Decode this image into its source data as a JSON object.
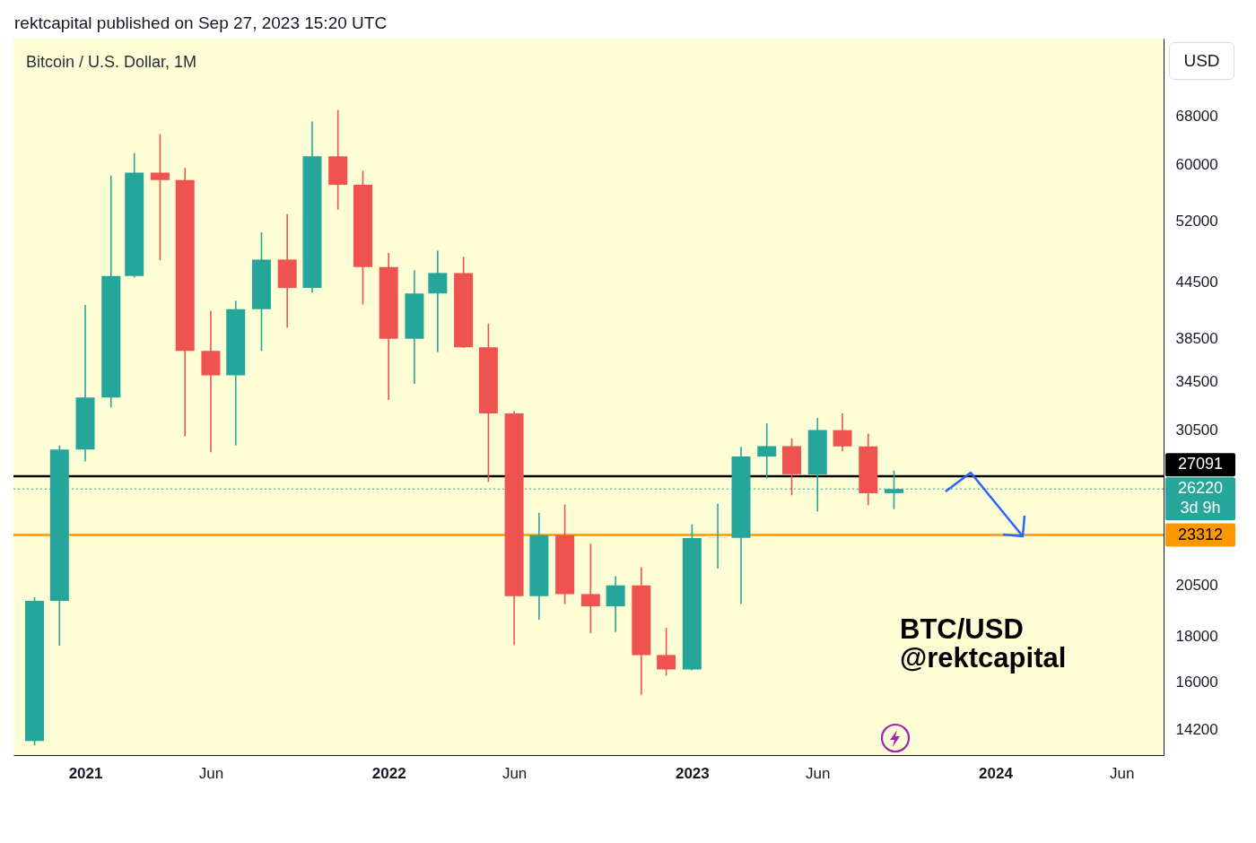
{
  "chart_data": {
    "type": "candlestick",
    "title": "rektcapital published on Sep 27, 2023 15:20 UTC",
    "subtitle": "Bitcoin / U.S. Dollar, 1M",
    "ylabel": "USD",
    "x": [
      "2020-11",
      "2020-12",
      "2021-01",
      "2021-02",
      "2021-03",
      "2021-04",
      "2021-05",
      "2021-06",
      "2021-07",
      "2021-08",
      "2021-09",
      "2021-10",
      "2021-11",
      "2021-12",
      "2022-01",
      "2022-02",
      "2022-03",
      "2022-04",
      "2022-05",
      "2022-06",
      "2022-07",
      "2022-08",
      "2022-09",
      "2022-10",
      "2022-11",
      "2022-12",
      "2023-01",
      "2023-02",
      "2023-03",
      "2023-04",
      "2023-05",
      "2023-06",
      "2023-07",
      "2023-08",
      "2023-09"
    ],
    "ohlc": [
      [
        13780,
        19890,
        13620,
        19700
      ],
      [
        19700,
        29300,
        17570,
        28990
      ],
      [
        28990,
        41950,
        28130,
        33110
      ],
      [
        33110,
        58350,
        32300,
        45160
      ],
      [
        45160,
        61780,
        45000,
        58800
      ],
      [
        58800,
        64900,
        47000,
        57700
      ],
      [
        57700,
        59500,
        30000,
        37300
      ],
      [
        37300,
        41330,
        28800,
        35040
      ],
      [
        35040,
        42400,
        29300,
        41500
      ],
      [
        41500,
        50500,
        37300,
        47100
      ],
      [
        47100,
        52900,
        39600,
        43800
      ],
      [
        43800,
        67000,
        43300,
        61300
      ],
      [
        61300,
        69000,
        53500,
        57000
      ],
      [
        57000,
        59100,
        42000,
        46200
      ],
      [
        46200,
        47900,
        32900,
        38480
      ],
      [
        38480,
        45800,
        34300,
        43190
      ],
      [
        43190,
        48190,
        37200,
        45510
      ],
      [
        45510,
        47430,
        37600,
        37640
      ],
      [
        37640,
        40000,
        26700,
        31800
      ],
      [
        31800,
        31980,
        17600,
        19940
      ],
      [
        19940,
        24670,
        18780,
        23300
      ],
      [
        23300,
        25200,
        19540,
        20050
      ],
      [
        20050,
        22800,
        18150,
        19430
      ],
      [
        19430,
        20990,
        18200,
        20500
      ],
      [
        20500,
        21470,
        15500,
        17160
      ],
      [
        17160,
        18390,
        16280,
        16540
      ],
      [
        16540,
        23950,
        16500,
        23130
      ],
      [
        23130,
        25250,
        21400,
        23140
      ],
      [
        23140,
        29190,
        19550,
        28480
      ],
      [
        28480,
        31000,
        26950,
        29250
      ],
      [
        29250,
        29840,
        25800,
        27220
      ],
      [
        27220,
        31440,
        24750,
        30470
      ],
      [
        30470,
        31800,
        28860,
        29230
      ],
      [
        29230,
        30200,
        25160,
        25940
      ],
      [
        25940,
        27480,
        24900,
        26220
      ]
    ],
    "colors": [
      "#26a69a",
      "#26a69a",
      "#26a69a",
      "#26a69a",
      "#26a69a",
      "#ef5350",
      "#ef5350",
      "#ef5350",
      "#26a69a",
      "#26a69a",
      "#ef5350",
      "#26a69a",
      "#ef5350",
      "#ef5350",
      "#ef5350",
      "#26a69a",
      "#26a69a",
      "#ef5350",
      "#ef5350",
      "#ef5350",
      "#26a69a",
      "#ef5350",
      "#ef5350",
      "#26a69a",
      "#ef5350",
      "#ef5350",
      "#26a69a",
      "#26a69a",
      "#26a69a",
      "#26a69a",
      "#ef5350",
      "#26a69a",
      "#ef5350",
      "#ef5350",
      "#26a69a"
    ],
    "log": true,
    "xlim": [
      "2020-10-12",
      "2024-07-16"
    ],
    "xticks": [
      {
        "value": "2021-01",
        "label": "2021"
      },
      {
        "value": "2021-06",
        "label": "Jun"
      },
      {
        "value": "2022-01",
        "label": "2022"
      },
      {
        "value": "2022-06",
        "label": "Jun"
      },
      {
        "value": "2023-01",
        "label": "2023"
      },
      {
        "value": "2023-06",
        "label": "Jun"
      },
      {
        "value": "2024-01",
        "label": "2024"
      },
      {
        "value": "2024-06",
        "label": "Jun"
      }
    ],
    "ylim": [
      13290,
      82800
    ],
    "yticks": [
      14200,
      16000,
      18000,
      20500,
      30500,
      34500,
      38500,
      44500,
      52000,
      60000,
      68000
    ],
    "ref_lines": [
      {
        "axis": "y",
        "value": 27091,
        "label": "27091",
        "color": "#000000",
        "line_style": "solid"
      },
      {
        "axis": "y",
        "value": 26220,
        "label": "26220",
        "color": "#26a69a",
        "line_style": "dotted"
      },
      {
        "axis": "y",
        "value": 23312,
        "label": "23312",
        "color": "#ff9800",
        "line_style": "solid"
      }
    ],
    "annotations": [
      "3d 9h",
      "BTC/USD",
      "@rektcapital"
    ]
  }
}
